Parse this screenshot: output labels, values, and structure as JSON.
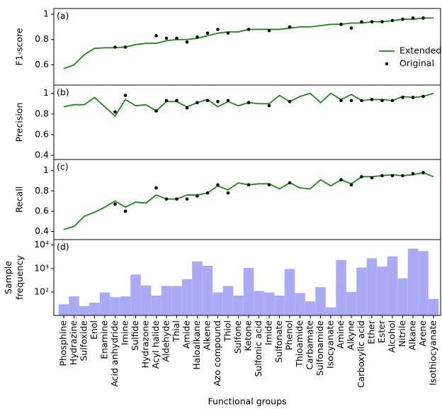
{
  "chart_data": [
    {
      "type": "line",
      "panel_label": "(a)",
      "ylabel": "F1-score",
      "ylim": [
        0.44,
        1.045
      ],
      "yticks": [
        0.6,
        0.8,
        1.0
      ],
      "legend": "lower right",
      "series": [
        {
          "name": "Extended",
          "color": "#1a8a1a",
          "style": "line",
          "values": [
            0.57,
            0.6,
            0.68,
            0.73,
            0.735,
            0.735,
            0.74,
            0.76,
            0.77,
            0.77,
            0.79,
            0.8,
            0.8,
            0.81,
            0.83,
            0.85,
            0.86,
            0.86,
            0.88,
            0.88,
            0.88,
            0.88,
            0.89,
            0.9,
            0.9,
            0.91,
            0.92,
            0.92,
            0.93,
            0.93,
            0.94,
            0.94,
            0.95,
            0.96,
            0.96,
            0.97,
            0.97
          ]
        },
        {
          "name": "Original",
          "color": "#000000",
          "style": "dots",
          "values": [
            null,
            null,
            null,
            null,
            null,
            0.74,
            0.74,
            null,
            null,
            0.83,
            0.81,
            0.81,
            0.78,
            0.82,
            0.85,
            0.88,
            0.85,
            null,
            0.88,
            null,
            0.87,
            null,
            0.9,
            null,
            null,
            null,
            null,
            0.92,
            0.89,
            0.94,
            0.94,
            0.94,
            0.95,
            0.96,
            0.97,
            0.97,
            null
          ]
        }
      ]
    },
    {
      "type": "line",
      "panel_label": "(b)",
      "ylabel": "Precision",
      "ylim": [
        0.36,
        1.08
      ],
      "yticks": [
        0.4,
        0.6,
        0.8,
        1.0
      ],
      "series": [
        {
          "color": "#1a8a1a",
          "style": "line",
          "values": [
            0.87,
            0.89,
            0.89,
            0.96,
            0.87,
            0.78,
            0.94,
            0.88,
            0.89,
            0.83,
            0.92,
            0.92,
            0.87,
            0.91,
            0.94,
            0.87,
            0.92,
            0.88,
            0.91,
            0.9,
            0.9,
            0.98,
            0.92,
            0.97,
            1.0,
            0.91,
            1.0,
            0.94,
            0.99,
            0.93,
            0.94,
            0.94,
            0.93,
            0.97,
            0.96,
            0.97,
            1.0
          ]
        },
        {
          "color": "#000000",
          "style": "dots",
          "values": [
            null,
            null,
            null,
            null,
            null,
            0.82,
            0.98,
            null,
            null,
            0.83,
            0.93,
            0.93,
            0.86,
            0.91,
            0.93,
            0.92,
            0.93,
            null,
            0.91,
            null,
            0.88,
            null,
            0.92,
            null,
            null,
            null,
            null,
            0.93,
            0.93,
            0.93,
            0.94,
            0.93,
            0.93,
            0.96,
            0.96,
            0.97,
            null
          ]
        }
      ]
    },
    {
      "type": "line",
      "panel_label": "(c)",
      "ylabel": "Recall",
      "ylim": [
        0.32,
        1.11
      ],
      "yticks": [
        0.4,
        0.6,
        0.8,
        1.0
      ],
      "series": [
        {
          "color": "#1a8a1a",
          "style": "line",
          "values": [
            0.42,
            0.45,
            0.55,
            0.59,
            0.64,
            0.7,
            0.64,
            0.69,
            0.68,
            0.76,
            0.72,
            0.72,
            0.76,
            0.76,
            0.78,
            0.85,
            0.81,
            0.88,
            0.86,
            0.87,
            0.87,
            0.82,
            0.88,
            0.83,
            0.82,
            0.91,
            0.85,
            0.91,
            0.87,
            0.94,
            0.94,
            0.95,
            0.96,
            0.95,
            0.96,
            0.98,
            0.94
          ]
        },
        {
          "color": "#000000",
          "style": "dots",
          "values": [
            null,
            null,
            null,
            null,
            null,
            0.67,
            0.6,
            null,
            null,
            0.83,
            0.72,
            0.72,
            0.72,
            0.75,
            0.78,
            0.86,
            0.78,
            null,
            0.86,
            null,
            0.86,
            null,
            0.88,
            null,
            null,
            null,
            null,
            0.91,
            0.86,
            0.94,
            0.93,
            0.95,
            0.95,
            0.95,
            0.97,
            0.98,
            null
          ]
        }
      ]
    },
    {
      "type": "bar",
      "panel_label": "(d)",
      "ylabel": "Sample frequency",
      "log_scale": true,
      "ylim": [
        10,
        17000
      ],
      "yticks": [
        {
          "value": 100,
          "label": "10²"
        },
        {
          "value": 1000,
          "label": "10³"
        },
        {
          "value": 10000,
          "label": "10⁴"
        }
      ],
      "color": "#aaaaf5",
      "xlabel": "Functional groups",
      "categories": [
        "Phosphine",
        "Hydrazine",
        "Sulfoxide",
        "Enol",
        "Enamine",
        "Acid anhydride",
        "Imine",
        "Sulfide",
        "Hydrazone",
        "Acyl halide",
        "Aldehyde",
        "Thial",
        "Amide",
        "Haloalkane",
        "Alkene",
        "Azo compound",
        "Thiol",
        "Sulfone",
        "Ketone",
        "Sulfonic acid",
        "Imide",
        "Sulfonate",
        "Phenol",
        "Thioamide",
        "Carbamate",
        "Sulfonamide",
        "Isocyanate",
        "Amine",
        "Alkyne",
        "Carboxylic acid",
        "Ether",
        "Ester",
        "Alcohol",
        "Nitrile",
        "Alkane",
        "Arene",
        "Isothiocyanate"
      ],
      "values": [
        30,
        65,
        25,
        35,
        95,
        60,
        65,
        550,
        190,
        70,
        180,
        180,
        350,
        2000,
        1300,
        95,
        180,
        70,
        1050,
        110,
        95,
        70,
        950,
        90,
        40,
        160,
        22,
        2300,
        100,
        1100,
        2700,
        1200,
        3300,
        380,
        7000,
        5500,
        50
      ]
    }
  ]
}
